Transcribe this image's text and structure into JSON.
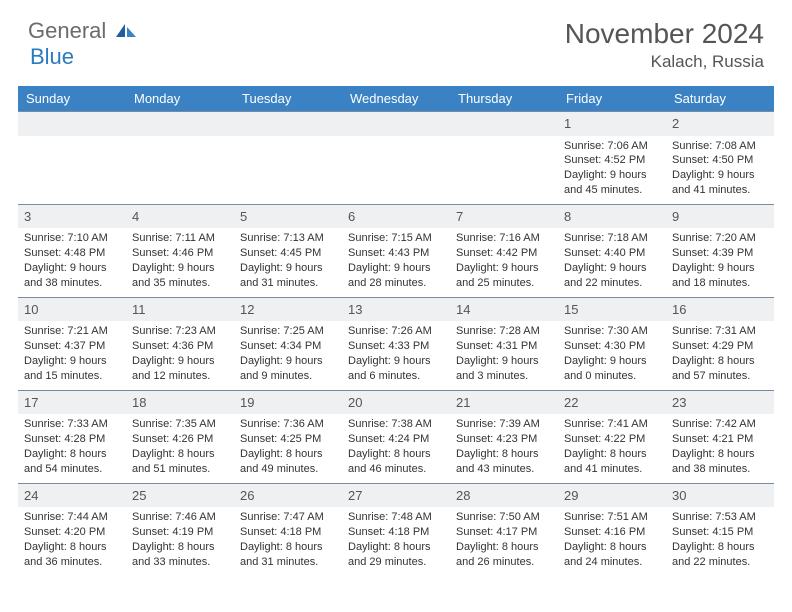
{
  "logo": {
    "general": "General",
    "blue": "Blue"
  },
  "title": "November 2024",
  "location": "Kalach, Russia",
  "colors": {
    "header_bg": "#3b82c4",
    "header_text": "#ffffff",
    "daynum_bg": "#eef0f2",
    "cell_border": "#7a8aa0",
    "text": "#333333",
    "title_text": "#555555",
    "logo_gray": "#6b6b6b",
    "logo_blue": "#2b7bbf",
    "background": "#ffffff"
  },
  "calendar": {
    "type": "table",
    "columns": [
      "Sunday",
      "Monday",
      "Tuesday",
      "Wednesday",
      "Thursday",
      "Friday",
      "Saturday"
    ],
    "leading_blanks": 5,
    "days": [
      {
        "n": 1,
        "sunrise": "7:06 AM",
        "sunset": "4:52 PM",
        "daylight": "9 hours and 45 minutes."
      },
      {
        "n": 2,
        "sunrise": "7:08 AM",
        "sunset": "4:50 PM",
        "daylight": "9 hours and 41 minutes."
      },
      {
        "n": 3,
        "sunrise": "7:10 AM",
        "sunset": "4:48 PM",
        "daylight": "9 hours and 38 minutes."
      },
      {
        "n": 4,
        "sunrise": "7:11 AM",
        "sunset": "4:46 PM",
        "daylight": "9 hours and 35 minutes."
      },
      {
        "n": 5,
        "sunrise": "7:13 AM",
        "sunset": "4:45 PM",
        "daylight": "9 hours and 31 minutes."
      },
      {
        "n": 6,
        "sunrise": "7:15 AM",
        "sunset": "4:43 PM",
        "daylight": "9 hours and 28 minutes."
      },
      {
        "n": 7,
        "sunrise": "7:16 AM",
        "sunset": "4:42 PM",
        "daylight": "9 hours and 25 minutes."
      },
      {
        "n": 8,
        "sunrise": "7:18 AM",
        "sunset": "4:40 PM",
        "daylight": "9 hours and 22 minutes."
      },
      {
        "n": 9,
        "sunrise": "7:20 AM",
        "sunset": "4:39 PM",
        "daylight": "9 hours and 18 minutes."
      },
      {
        "n": 10,
        "sunrise": "7:21 AM",
        "sunset": "4:37 PM",
        "daylight": "9 hours and 15 minutes."
      },
      {
        "n": 11,
        "sunrise": "7:23 AM",
        "sunset": "4:36 PM",
        "daylight": "9 hours and 12 minutes."
      },
      {
        "n": 12,
        "sunrise": "7:25 AM",
        "sunset": "4:34 PM",
        "daylight": "9 hours and 9 minutes."
      },
      {
        "n": 13,
        "sunrise": "7:26 AM",
        "sunset": "4:33 PM",
        "daylight": "9 hours and 6 minutes."
      },
      {
        "n": 14,
        "sunrise": "7:28 AM",
        "sunset": "4:31 PM",
        "daylight": "9 hours and 3 minutes."
      },
      {
        "n": 15,
        "sunrise": "7:30 AM",
        "sunset": "4:30 PM",
        "daylight": "9 hours and 0 minutes."
      },
      {
        "n": 16,
        "sunrise": "7:31 AM",
        "sunset": "4:29 PM",
        "daylight": "8 hours and 57 minutes."
      },
      {
        "n": 17,
        "sunrise": "7:33 AM",
        "sunset": "4:28 PM",
        "daylight": "8 hours and 54 minutes."
      },
      {
        "n": 18,
        "sunrise": "7:35 AM",
        "sunset": "4:26 PM",
        "daylight": "8 hours and 51 minutes."
      },
      {
        "n": 19,
        "sunrise": "7:36 AM",
        "sunset": "4:25 PM",
        "daylight": "8 hours and 49 minutes."
      },
      {
        "n": 20,
        "sunrise": "7:38 AM",
        "sunset": "4:24 PM",
        "daylight": "8 hours and 46 minutes."
      },
      {
        "n": 21,
        "sunrise": "7:39 AM",
        "sunset": "4:23 PM",
        "daylight": "8 hours and 43 minutes."
      },
      {
        "n": 22,
        "sunrise": "7:41 AM",
        "sunset": "4:22 PM",
        "daylight": "8 hours and 41 minutes."
      },
      {
        "n": 23,
        "sunrise": "7:42 AM",
        "sunset": "4:21 PM",
        "daylight": "8 hours and 38 minutes."
      },
      {
        "n": 24,
        "sunrise": "7:44 AM",
        "sunset": "4:20 PM",
        "daylight": "8 hours and 36 minutes."
      },
      {
        "n": 25,
        "sunrise": "7:46 AM",
        "sunset": "4:19 PM",
        "daylight": "8 hours and 33 minutes."
      },
      {
        "n": 26,
        "sunrise": "7:47 AM",
        "sunset": "4:18 PM",
        "daylight": "8 hours and 31 minutes."
      },
      {
        "n": 27,
        "sunrise": "7:48 AM",
        "sunset": "4:18 PM",
        "daylight": "8 hours and 29 minutes."
      },
      {
        "n": 28,
        "sunrise": "7:50 AM",
        "sunset": "4:17 PM",
        "daylight": "8 hours and 26 minutes."
      },
      {
        "n": 29,
        "sunrise": "7:51 AM",
        "sunset": "4:16 PM",
        "daylight": "8 hours and 24 minutes."
      },
      {
        "n": 30,
        "sunrise": "7:53 AM",
        "sunset": "4:15 PM",
        "daylight": "8 hours and 22 minutes."
      }
    ],
    "labels": {
      "sunrise": "Sunrise:",
      "sunset": "Sunset:",
      "daylight": "Daylight:"
    }
  }
}
